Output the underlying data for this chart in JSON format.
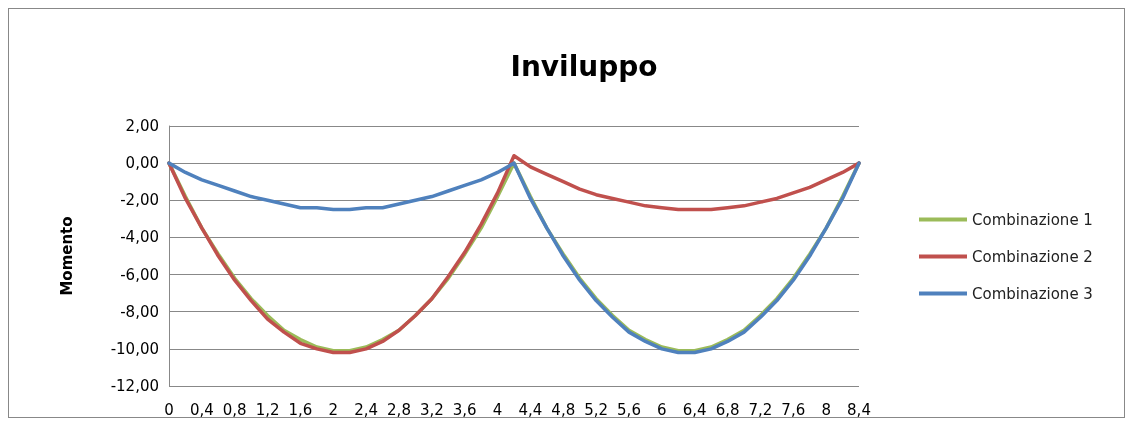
{
  "chart_data": {
    "type": "line",
    "title": "Inviluppo",
    "ylabel": "Momento",
    "categories": [
      "0",
      null,
      "0,4",
      null,
      "0,8",
      null,
      "1,2",
      null,
      "1,6",
      null,
      "2",
      null,
      "2,4",
      null,
      "2,8",
      null,
      "3,2",
      null,
      "3,6",
      null,
      "4",
      null,
      "4,4",
      null,
      "4,8",
      null,
      "5,2",
      null,
      "5,6",
      null,
      "6",
      null,
      "6,4",
      null,
      "6,8",
      null,
      "7,2",
      null,
      "7,6",
      null,
      "8",
      null,
      "8,4"
    ],
    "series": [
      {
        "name": "Combinazione 1",
        "color": "#9bbb59",
        "values": [
          0,
          -1.8,
          -3.5,
          -4.9,
          -6.2,
          -7.3,
          -8.2,
          -9.0,
          -9.5,
          -9.9,
          -10.1,
          -10.1,
          -9.9,
          -9.5,
          -9.0,
          -8.2,
          -7.3,
          -6.2,
          -4.9,
          -3.5,
          -1.8,
          0,
          -1.8,
          -3.5,
          -4.9,
          -6.2,
          -7.3,
          -8.2,
          -9.0,
          -9.5,
          -9.9,
          -10.1,
          -10.1,
          -9.9,
          -9.5,
          -9.0,
          -8.2,
          -7.3,
          -6.2,
          -4.9,
          -3.5,
          -1.8,
          0
        ]
      },
      {
        "name": "Combinazione 2",
        "color": "#c0504d",
        "values": [
          0,
          -1.9,
          -3.5,
          -5.0,
          -6.3,
          -7.4,
          -8.4,
          -9.1,
          -9.7,
          -10.0,
          -10.2,
          -10.2,
          -10.0,
          -9.6,
          -9.0,
          -8.2,
          -7.3,
          -6.1,
          -4.8,
          -3.3,
          -1.6,
          0.4,
          -0.2,
          -0.6,
          -1.0,
          -1.4,
          -1.7,
          -1.9,
          -2.1,
          -2.3,
          -2.4,
          -2.5,
          -2.5,
          -2.5,
          -2.4,
          -2.3,
          -2.1,
          -1.9,
          -1.6,
          -1.3,
          -0.9,
          -0.5,
          0
        ]
      },
      {
        "name": "Combinazione 3",
        "color": "#4f81bd",
        "values": [
          0,
          -0.5,
          -0.9,
          -1.2,
          -1.5,
          -1.8,
          -2.0,
          -2.2,
          -2.4,
          -2.4,
          -2.5,
          -2.5,
          -2.4,
          -2.4,
          -2.2,
          -2.0,
          -1.8,
          -1.5,
          -1.2,
          -0.9,
          -0.5,
          0,
          -1.9,
          -3.5,
          -5.0,
          -6.3,
          -7.4,
          -8.3,
          -9.1,
          -9.6,
          -10.0,
          -10.2,
          -10.2,
          -10.0,
          -9.6,
          -9.1,
          -8.3,
          -7.4,
          -6.3,
          -5.0,
          -3.5,
          -1.9,
          0
        ]
      }
    ],
    "ylim": [
      -12,
      2
    ],
    "yticks": [
      {
        "value": -12,
        "label": "-12,00"
      },
      {
        "value": -10,
        "label": "-10,00"
      },
      {
        "value": -8,
        "label": "-8,00"
      },
      {
        "value": -6,
        "label": "-6,00"
      },
      {
        "value": -4,
        "label": "-4,00"
      },
      {
        "value": -2,
        "label": "-2,00"
      },
      {
        "value": 0,
        "label": "0,00"
      },
      {
        "value": 2,
        "label": "2,00"
      }
    ],
    "grid": "y",
    "legend": "right",
    "marker": "none",
    "line_style": "solid"
  }
}
